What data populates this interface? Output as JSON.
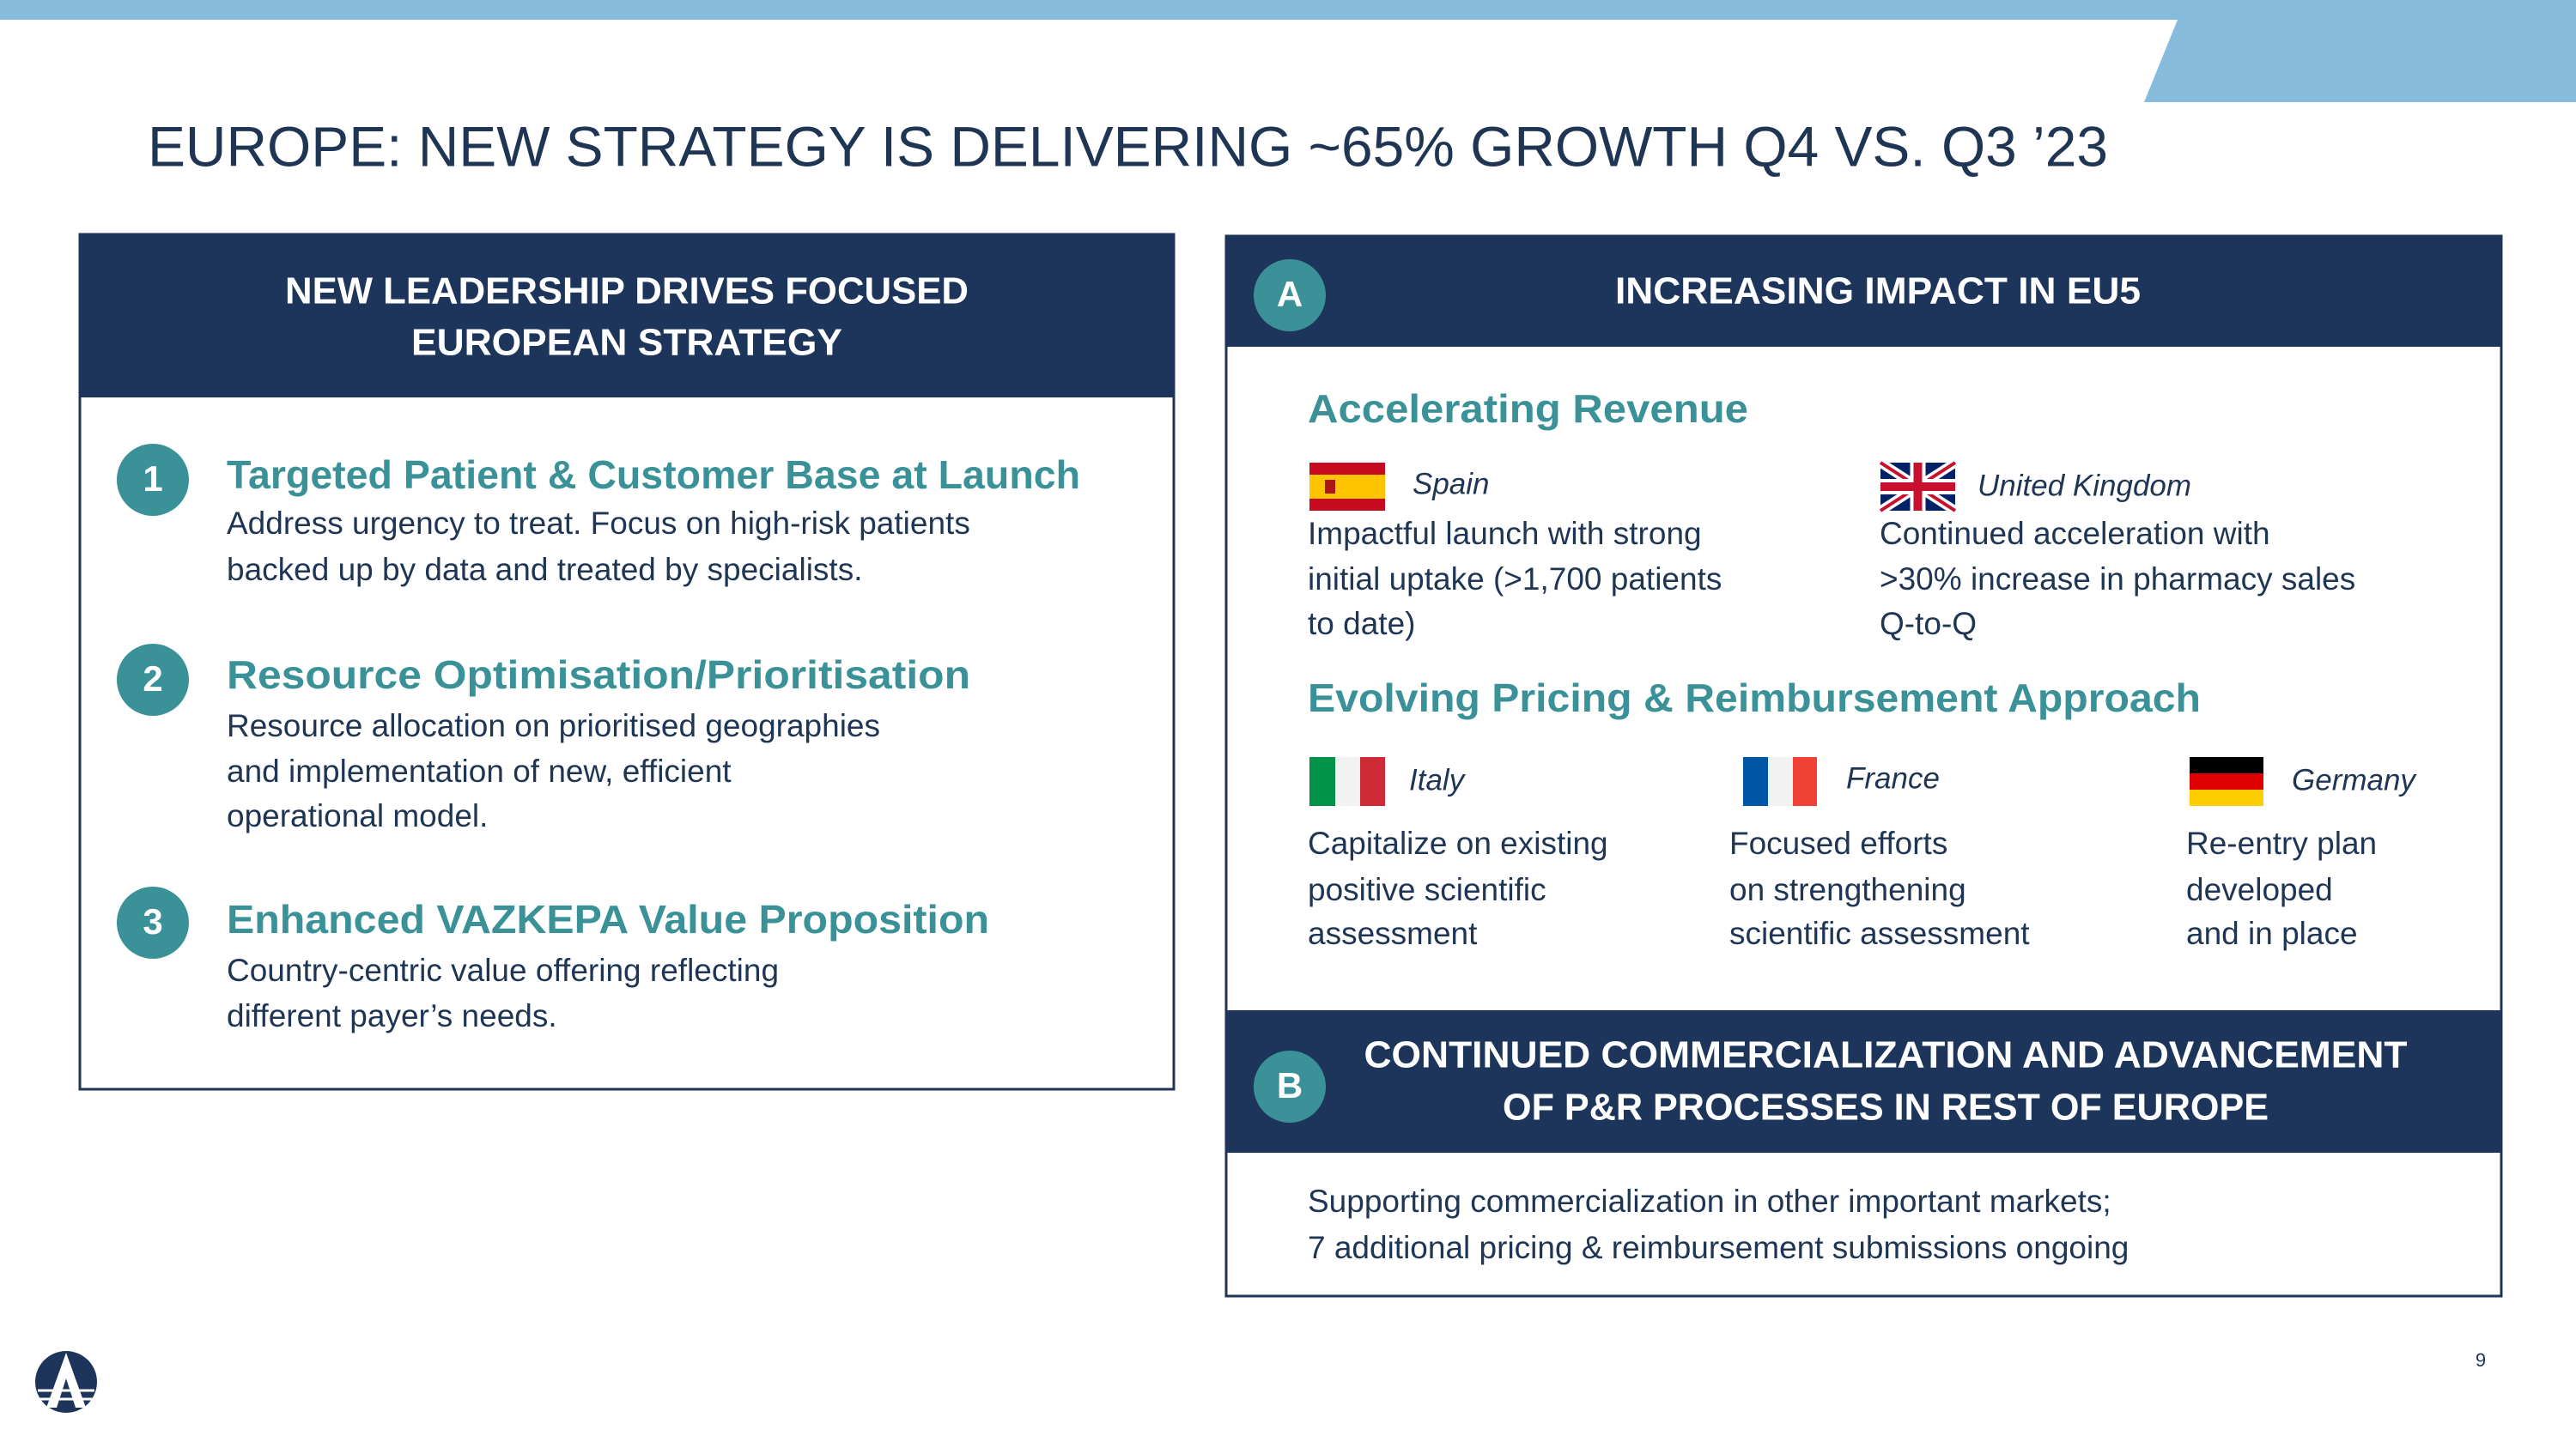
{
  "header": {
    "title": "EUROPE: NEW STRATEGY IS DELIVERING ~65% GROWTH Q4 VS. Q3 ’23"
  },
  "left_panel": {
    "heading": [
      "NEW LEADERSHIP DRIVES FOCUSED",
      "EUROPEAN STRATEGY"
    ],
    "items": [
      {
        "number": "1",
        "title": "Targeted Patient & Customer Base at Launch",
        "body": [
          "Address urgency to treat. Focus on high-risk patients",
          "backed up by data and treated by specialists."
        ]
      },
      {
        "number": "2",
        "title": "Resource Optimisation/Prioritisation",
        "body": [
          "Resource allocation on prioritised  geographies",
          "and implementation of new, efficient",
          "operational model."
        ]
      },
      {
        "number": "3",
        "title": "Enhanced VAZKEPA Value Proposition",
        "body": [
          "Country-centric value offering reflecting",
          "different payer’s needs."
        ]
      }
    ]
  },
  "panel_a": {
    "badge": "A",
    "heading": "INCREASING IMPACT IN EU5",
    "revenue": {
      "title": "Accelerating Revenue",
      "countries": [
        {
          "name": "Spain",
          "body": [
            "Impactful launch with strong",
            "initial uptake (>1,700 patients",
            "to date)"
          ]
        },
        {
          "name": "United Kingdom",
          "body": [
            "Continued acceleration with",
            ">30% increase in  pharmacy sales",
            "Q-to-Q"
          ]
        }
      ]
    },
    "pricing": {
      "title": "Evolving Pricing & Reimbursement Approach",
      "countries": [
        {
          "name": "Italy",
          "body": [
            "Capitalize on existing",
            "positive scientific",
            "assessment"
          ]
        },
        {
          "name": "France",
          "body": [
            "Focused efforts",
            "on strengthening",
            "scientific assessment"
          ]
        },
        {
          "name": "Germany",
          "body": [
            "Re-entry plan",
            "developed",
            "and in place"
          ]
        }
      ]
    }
  },
  "panel_b": {
    "badge": "B",
    "heading": [
      "CONTINUED COMMERCIALIZATION AND ADVANCEMENT",
      "OF P&R PROCESSES IN REST OF EUROPE"
    ],
    "body": [
      "Supporting commercialization in other important markets;",
      "7 additional pricing & reimbursement submissions ongoing"
    ]
  },
  "footer": {
    "page_number": "9"
  }
}
